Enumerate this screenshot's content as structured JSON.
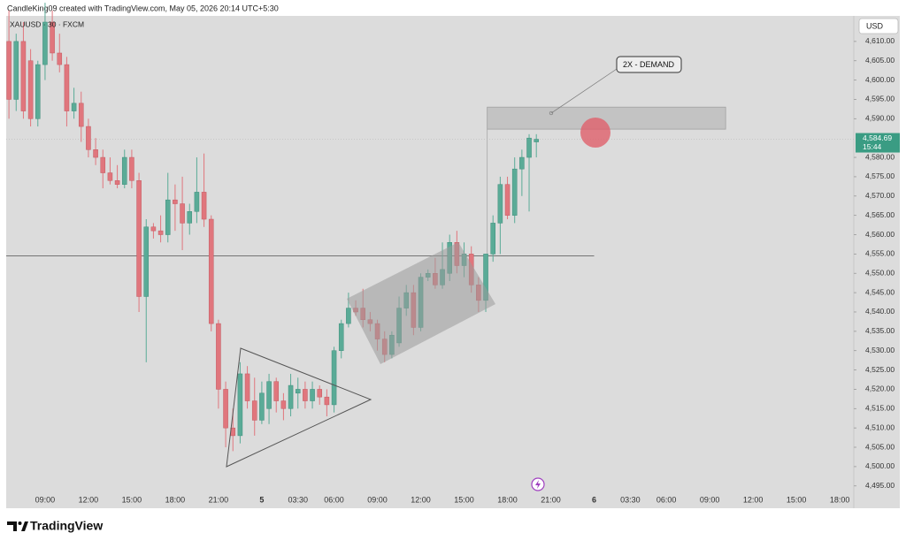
{
  "header": "CandleKing09 created with TradingView.com, May 05, 2026 20:14 UTC+5:30",
  "footer": "TradingView",
  "chart_data": {
    "type": "candlestick",
    "symbol": "XAUUSD · 30 · FXCM",
    "currency": "USD",
    "annotation": "2X - DEMAND",
    "last_label": "4,584.69",
    "countdown": "15:44",
    "up_color": "#5aab97",
    "down_color": "#e0767d",
    "horizontal_line": {
      "value": 4554.5,
      "x_end": 38
    },
    "demand_zone": {
      "low": 4587.3,
      "high": 4593,
      "x_start": 30.6,
      "x_end": 47.1
    },
    "xlim": [
      -2.69,
      55.97
    ],
    "ylim": [
      4492.2,
      4616.6
    ],
    "xticks": [
      {
        "value": 0,
        "label": "09:00"
      },
      {
        "value": 3,
        "label": "12:00"
      },
      {
        "value": 6,
        "label": "15:00"
      },
      {
        "value": 9,
        "label": "18:00"
      },
      {
        "value": 12,
        "label": "21:00"
      },
      {
        "value": 15,
        "label": "5"
      },
      {
        "value": 17.5,
        "label": "03:30"
      },
      {
        "value": 20,
        "label": "06:00"
      },
      {
        "value": 23,
        "label": "09:00"
      },
      {
        "value": 26,
        "label": "12:00"
      },
      {
        "value": 29,
        "label": "15:00"
      },
      {
        "value": 32,
        "label": "18:00"
      },
      {
        "value": 35,
        "label": "21:00"
      },
      {
        "value": 38,
        "label": "6"
      },
      {
        "value": 40.5,
        "label": "03:30"
      },
      {
        "value": 43,
        "label": "06:00"
      },
      {
        "value": 46,
        "label": "09:00"
      },
      {
        "value": 49,
        "label": "12:00"
      },
      {
        "value": 52,
        "label": "15:00"
      },
      {
        "value": 55,
        "label": "18:00"
      }
    ],
    "yticks": [
      {
        "value": 4495,
        "label": "4,495.00"
      },
      {
        "value": 4500,
        "label": "4,500.00"
      },
      {
        "value": 4505,
        "label": "4,505.00"
      },
      {
        "value": 4510,
        "label": "4,510.00"
      },
      {
        "value": 4515,
        "label": "4,515.00"
      },
      {
        "value": 4520,
        "label": "4,520.00"
      },
      {
        "value": 4525,
        "label": "4,525.00"
      },
      {
        "value": 4530,
        "label": "4,530.00"
      },
      {
        "value": 4535,
        "label": "4,535.00"
      },
      {
        "value": 4540,
        "label": "4,540.00"
      },
      {
        "value": 4545,
        "label": "4,545.00"
      },
      {
        "value": 4550,
        "label": "4,550.00"
      },
      {
        "value": 4555,
        "label": "4,555.00"
      },
      {
        "value": 4560,
        "label": "4,560.00"
      },
      {
        "value": 4565,
        "label": "4,565.00"
      },
      {
        "value": 4570,
        "label": "4,570.00"
      },
      {
        "value": 4575,
        "label": "4,575.00"
      },
      {
        "value": 4580,
        "label": "4,580.00"
      },
      {
        "value": 4590,
        "label": "4,590.00"
      },
      {
        "value": 4595,
        "label": "4,595.00"
      },
      {
        "value": 4600,
        "label": "4,600.00"
      },
      {
        "value": 4605,
        "label": "4,605.00"
      },
      {
        "value": 4610,
        "label": "4,610.00"
      }
    ],
    "x": [
      -2.5,
      -2,
      -1.5,
      -1,
      -0.5,
      0,
      0.5,
      1,
      1.5,
      2,
      2.5,
      3,
      3.5,
      4,
      4.5,
      5,
      5.5,
      6,
      6.5,
      7,
      7.5,
      8,
      8.5,
      9,
      9.5,
      10,
      10.5,
      11,
      11.5,
      12,
      12.5,
      13,
      13.5,
      14,
      14.5,
      15,
      15.5,
      16,
      16.5,
      17,
      17.5,
      18,
      18.5,
      19,
      19.5,
      20,
      20.5,
      21,
      21.5,
      22,
      22.5,
      23,
      23.5,
      24,
      24.5,
      25,
      25.5,
      26,
      26.5,
      27,
      27.5,
      28,
      28.5,
      29,
      29.5,
      30,
      30.5,
      31,
      31.5,
      32,
      32.5,
      33,
      33.5,
      34
    ],
    "open": [
      4610,
      4595,
      4610,
      4605,
      4590,
      4604,
      4615,
      4607,
      4604,
      4592,
      4594,
      4588,
      4582,
      4580,
      4576,
      4574,
      4573,
      4580,
      4574,
      4544,
      4562,
      4561,
      4560,
      4569,
      4568,
      4563,
      4566,
      4571,
      4564,
      4537,
      4520,
      4510,
      4508,
      4524,
      4517,
      4512,
      4515,
      4522,
      4517,
      4515,
      4519,
      4520,
      4517,
      4520,
      4518,
      4516,
      4530,
      4537,
      4541,
      4541,
      4538,
      4537,
      4533,
      4529,
      4532,
      4541,
      4545,
      4536,
      4549,
      4550,
      4547,
      4550,
      4558,
      4552,
      4555,
      4547,
      4543,
      4555,
      4563,
      4573,
      4565,
      4577,
      4580,
      4584
    ],
    "high": [
      4618,
      4612,
      4615,
      4608,
      4605,
      4620,
      4618,
      4612,
      4606,
      4598,
      4597,
      4590,
      4585,
      4582,
      4580,
      4578,
      4582,
      4582,
      4576,
      4564,
      4563,
      4565,
      4576,
      4573,
      4575,
      4568,
      4580,
      4581,
      4565,
      4538,
      4522,
      4515,
      4527,
      4526,
      4523,
      4522,
      4524,
      4523,
      4519,
      4524,
      4523,
      4522,
      4522,
      4521,
      4520,
      4531,
      4538,
      4545,
      4543,
      4546,
      4540,
      4538,
      4535,
      4535,
      4544,
      4547,
      4547,
      4550,
      4551,
      4554,
      4558,
      4560,
      4561,
      4558,
      4557,
      4549,
      4555,
      4565,
      4575,
      4575,
      4580,
      4582,
      4586,
      4586
    ],
    "low": [
      4590,
      4592,
      4590,
      4588,
      4588,
      4600,
      4605,
      4602,
      4588,
      4590,
      4584,
      4580,
      4578,
      4572,
      4573,
      4572,
      4572,
      4572,
      4540,
      4527,
      4559,
      4558,
      4558,
      4561,
      4556,
      4560,
      4563,
      4562,
      4535,
      4515,
      4505,
      4504,
      4506,
      4515,
      4508,
      4511,
      4511,
      4514,
      4512,
      4513,
      4515,
      4515,
      4515,
      4516,
      4513,
      4514,
      4528,
      4536,
      4539,
      4536,
      4535,
      4530,
      4527,
      4528,
      4531,
      4539,
      4534,
      4535,
      4548,
      4546,
      4546,
      4548,
      4550,
      4549,
      4545,
      4540,
      4540,
      4553,
      4555,
      4564,
      4563,
      4570,
      4566,
      4580
    ],
    "close": [
      4595,
      4610,
      4592,
      4590,
      4604,
      4615,
      4607,
      4604,
      4592,
      4594,
      4588,
      4582,
      4580,
      4576,
      4574,
      4573,
      4580,
      4574,
      4544,
      4562,
      4561,
      4560,
      4569,
      4568,
      4563,
      4566,
      4571,
      4564,
      4537,
      4520,
      4510,
      4508,
      4524,
      4517,
      4512,
      4519,
      4522,
      4517,
      4515,
      4521,
      4520,
      4517,
      4520,
      4518,
      4516,
      4530,
      4537,
      4541,
      4540,
      4538,
      4537,
      4533,
      4529,
      4534,
      4541,
      4545,
      4536,
      4549,
      4550,
      4547,
      4551,
      4558,
      4552,
      4555,
      4547,
      4543,
      4555,
      4563,
      4573,
      4565,
      4577,
      4580,
      4585,
      4584.69
    ]
  }
}
